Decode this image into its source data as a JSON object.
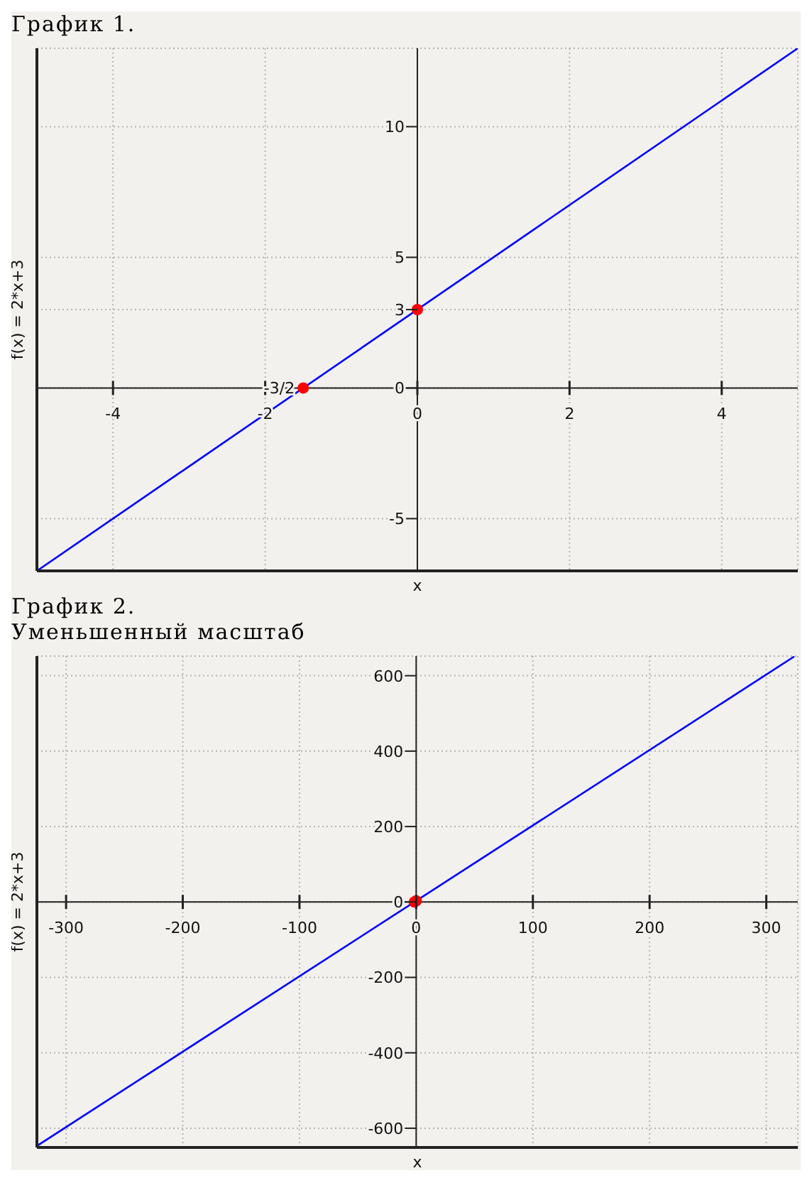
{
  "chart_data": [
    {
      "type": "line",
      "title": "График 1.",
      "xlabel": "x",
      "ylabel": "f(x) = 2*x+3",
      "xlim": [
        -5,
        5
      ],
      "ylim": [
        -7,
        13
      ],
      "xticks": [
        -4,
        -2,
        0,
        2,
        4
      ],
      "yticks": [
        -5,
        0,
        3,
        5,
        10
      ],
      "grid": true,
      "annotations": [
        {
          "text": "-3/2",
          "x": -1.5,
          "y": 0
        }
      ],
      "series": [
        {
          "color": "#0000ff",
          "x": [
            -5,
            5
          ],
          "values": [
            -7,
            13
          ]
        },
        {
          "type": "scatter",
          "color": "#ff0000",
          "marker": "circle",
          "x": [
            -1.5,
            0
          ],
          "values": [
            0,
            3
          ]
        }
      ]
    },
    {
      "type": "line",
      "title": "График 2.",
      "subtitle": "Уменьшенный масштаб",
      "xlabel": "x",
      "ylabel": "f(x) = 2*x+3",
      "xlim": [
        -325,
        327
      ],
      "ylim": [
        -651,
        652
      ],
      "xticks": [
        -300,
        -200,
        -100,
        0,
        100,
        200,
        300
      ],
      "yticks": [
        -600,
        -400,
        -200,
        0,
        200,
        400,
        600
      ],
      "grid": true,
      "series": [
        {
          "color": "#0000ff",
          "x": [
            -325,
            324
          ],
          "values": [
            -647,
            651
          ]
        },
        {
          "type": "scatter",
          "color": "#ff0000",
          "marker": "circle",
          "x": [
            -1.5,
            0
          ],
          "values": [
            0,
            3
          ]
        }
      ]
    }
  ]
}
